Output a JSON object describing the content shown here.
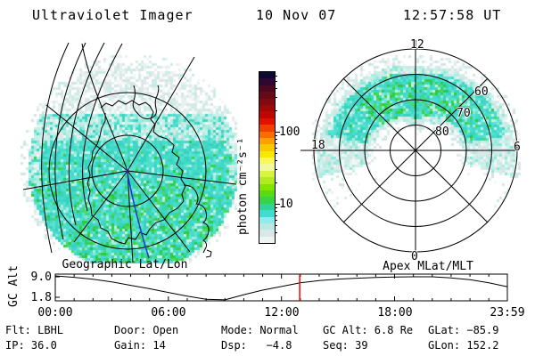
{
  "header": {
    "title": "Ultraviolet Imager",
    "date": "10 Nov 07",
    "time": "12:57:58 UT"
  },
  "left_plot": {
    "caption": "Geographic Lat/Lon"
  },
  "right_plot": {
    "caption": "Apex MLat/MLT",
    "mlt_top": "12",
    "mlt_left": "18",
    "mlt_right": "6",
    "mlt_bottom": "0",
    "ring_labels": {
      "r80": "80",
      "r70": "70",
      "r60": "60"
    }
  },
  "colorbar": {
    "label": "photon cm⁻²s⁻¹",
    "scale": "log",
    "major_ticks": [
      {
        "value": 100,
        "label": "100"
      },
      {
        "value": 10,
        "label": "10"
      }
    ],
    "minor_ticks": [
      600,
      500,
      400,
      300,
      200,
      90,
      80,
      70,
      60,
      50,
      40,
      30,
      20,
      9,
      8,
      7,
      6,
      5,
      4,
      3
    ],
    "colors": [
      "#0a0a32",
      "#2e0830",
      "#4c0722",
      "#660a18",
      "#800a10",
      "#9e0808",
      "#c00603",
      "#e21000",
      "#f04000",
      "#f86c00",
      "#faa000",
      "#f8c800",
      "#f8e800",
      "#f8f858",
      "#f0f8a0",
      "#d8f440",
      "#b0ec20",
      "#84e400",
      "#58dc10",
      "#38d448",
      "#30d498",
      "#40dcd0",
      "#90ecec",
      "#bce8e4",
      "#d8e8e8",
      "#eef4f4"
    ]
  },
  "timeline": {
    "ylabel": "GC Alt",
    "ytick_labels": [
      "9.0",
      "1.8"
    ],
    "ytick_values": [
      9.0,
      1.8
    ],
    "xtick_labels": [
      "00:00",
      "06:00",
      "12:00",
      "18:00",
      "23:59"
    ],
    "xtick_hours": [
      0,
      6,
      12,
      18,
      23.983
    ],
    "marker_color": "#ff0000"
  },
  "status": {
    "flt": "Flt: LBHL",
    "ip": "IP: 36.0",
    "door": "Door: Open",
    "gain": "Gain: 14",
    "mode": "Mode: Normal",
    "dsp": "Dsp:   −4.8",
    "gcalt": "GC Alt: 6.8 Re",
    "seq": "Seq: 39",
    "glat": "GLat: −85.9",
    "glon": "GLon: 152.2"
  },
  "speckle": {
    "cyan": [
      "#3fd8c6",
      "#49dcca",
      "#36d2c0",
      "#58e2d2"
    ],
    "green": [
      "#35d14b",
      "#2dc93f",
      "#48da5a"
    ],
    "light": [
      "#a8eee2",
      "#c4f2ea",
      "#8ce8d8"
    ],
    "pale": [
      "#dde9e8",
      "#e9f1f0",
      "#d2e5e3",
      "#c9ede7",
      "#f3f7f6"
    ]
  },
  "chart_data": [
    {
      "type": "heatmap",
      "title": "Geographic Lat/Lon",
      "description": "UVI auroral emission image over a southern-hemisphere geographic polar grid with Antarctica coastline; diffuse cyan emission (~5-20 photon cm⁻²s⁻¹) with brighter green patches toward lower half; pale low-signal fringe on the upper limb; latitude circles and meridians drawn in black, 0° meridian in blue",
      "colormap_units": "photon cm⁻²s⁻¹"
    },
    {
      "type": "heatmap",
      "title": "Apex MLat/MLT",
      "rings_mlat": [
        80,
        70,
        60,
        50
      ],
      "ring_tick_labels": [
        "80",
        "70",
        "60"
      ],
      "mlt_ticks": [
        "12",
        "18",
        "6",
        "0"
      ],
      "description": "Auroral oval swath spanning MLT 18 through 12 to 06 between about 55° and 78° magnetic latitude; cyan ~10 photon cm⁻²s⁻¹ with green patches ~20 near 12 MLT, pale fringe at oval edges"
    },
    {
      "type": "line",
      "title": "GC Alt orbit track",
      "ylabel": "GC Alt",
      "yticks": [
        9.0,
        1.8
      ],
      "xticks": [
        "00:00",
        "06:00",
        "12:00",
        "18:00",
        "23:59"
      ],
      "x_hours": [
        0,
        1,
        2,
        3,
        4,
        5,
        6,
        7,
        8,
        9,
        10,
        11,
        12,
        13,
        14,
        15,
        16,
        17,
        18,
        19,
        20,
        21,
        22,
        23,
        24
      ],
      "values_re": [
        9.3,
        8.8,
        8.15,
        7.2,
        6.0,
        4.8,
        3.5,
        2.2,
        1.1,
        0.9,
        2.7,
        4.3,
        5.6,
        6.9,
        7.7,
        8.2,
        8.5,
        8.75,
        8.9,
        9.0,
        9.0,
        8.6,
        8.0,
        6.9,
        5.5
      ],
      "marker_hour": 12.966,
      "marker_color": "#ff0000"
    }
  ]
}
